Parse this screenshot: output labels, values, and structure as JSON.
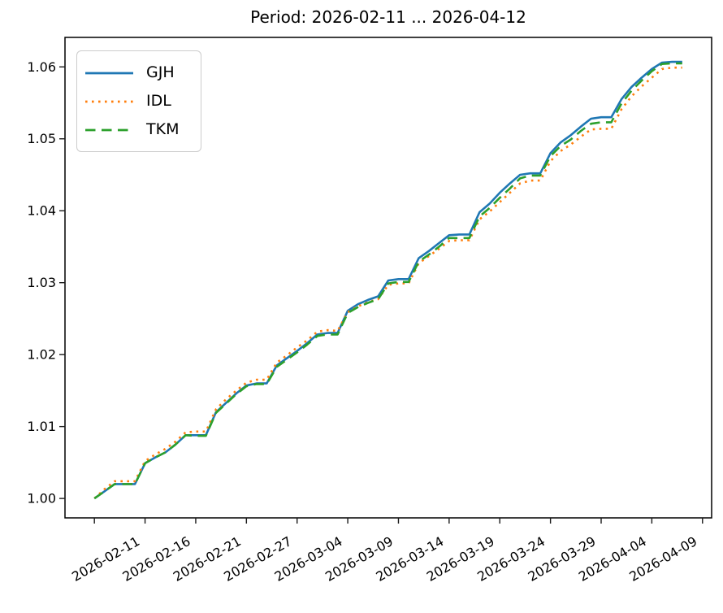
{
  "figure": {
    "background": "#ffffff",
    "spine_color": "#000000",
    "tick_color": "#1a1a1a",
    "text_color": "#000000",
    "legend_border_color": "#cccccc"
  },
  "chart_data": {
    "type": "line",
    "title": "Period: 2026-02-11 ... 2026-04-12",
    "xlabel": "",
    "ylabel": "",
    "grid": false,
    "legend_position": "upper left",
    "xlim_index": [
      -2.9,
      60.9
    ],
    "ylim": [
      0.9973,
      1.0641
    ],
    "y_ticks": [
      1.0,
      1.01,
      1.02,
      1.03,
      1.04,
      1.05,
      1.06
    ],
    "y_tick_labels": [
      "1.00",
      "1.01",
      "1.02",
      "1.03",
      "1.04",
      "1.05",
      "1.06"
    ],
    "x_tick_indices": [
      0,
      5,
      10,
      15,
      20,
      25,
      30,
      35,
      40,
      45,
      50,
      55,
      60
    ],
    "x_tick_labels": [
      "2026-02-11",
      "2026-02-16",
      "2026-02-21",
      "2026-02-27",
      "2026-03-04",
      "2026-03-09",
      "2026-03-14",
      "2026-03-19",
      "2026-03-24",
      "2026-03-29",
      "2026-04-04",
      "2026-04-09",
      ""
    ],
    "x_labels": [
      "2026-02-11",
      "2026-02-12",
      "2026-02-13",
      "2026-02-14",
      "2026-02-15",
      "2026-02-16",
      "2026-02-17",
      "2026-02-18",
      "2026-02-19",
      "2026-02-20",
      "2026-02-21",
      "2026-02-22",
      "2026-02-24",
      "2026-02-25",
      "2026-02-26",
      "2026-02-27",
      "2026-02-28",
      "2026-03-01",
      "2026-03-02",
      "2026-03-03",
      "2026-03-04",
      "2026-03-05",
      "2026-03-06",
      "2026-03-07",
      "2026-03-08",
      "2026-03-09",
      "2026-03-10",
      "2026-03-11",
      "2026-03-12",
      "2026-03-13",
      "2026-03-14",
      "2026-03-15",
      "2026-03-16",
      "2026-03-17",
      "2026-03-18",
      "2026-03-19",
      "2026-03-20",
      "2026-03-21",
      "2026-03-22",
      "2026-03-23",
      "2026-03-24",
      "2026-03-25",
      "2026-03-26",
      "2026-03-27",
      "2026-03-28",
      "2026-03-29",
      "2026-03-30",
      "2026-03-31",
      "2026-04-02",
      "2026-04-03",
      "2026-04-04",
      "2026-04-05",
      "2026-04-06",
      "2026-04-07",
      "2026-04-08",
      "2026-04-09",
      "2026-04-10",
      "2026-04-11",
      "2026-04-12"
    ],
    "series": [
      {
        "name": "GJH",
        "color": "#1f77b4",
        "style": "solid",
        "values": [
          1.0,
          1.001,
          1.002,
          1.002,
          1.002,
          1.0049,
          1.0057,
          1.0064,
          1.0075,
          1.0088,
          1.0088,
          1.0088,
          1.012,
          1.0133,
          1.0146,
          1.0157,
          1.016,
          1.016,
          1.0185,
          1.0195,
          1.0205,
          1.0216,
          1.0228,
          1.023,
          1.023,
          1.0261,
          1.027,
          1.0276,
          1.0281,
          1.0303,
          1.0305,
          1.0305,
          1.0334,
          1.0344,
          1.0355,
          1.0366,
          1.0367,
          1.0367,
          1.0398,
          1.041,
          1.0425,
          1.0438,
          1.045,
          1.0452,
          1.0452,
          1.048,
          1.0495,
          1.0505,
          1.0517,
          1.0528,
          1.053,
          1.053,
          1.0555,
          1.0572,
          1.0585,
          1.0597,
          1.0606,
          1.0607,
          1.0607
        ]
      },
      {
        "name": "IDL",
        "color": "#ff7f0e",
        "style": "dotted",
        "values": [
          1.0,
          1.0013,
          1.0024,
          1.0024,
          1.0024,
          1.0052,
          1.0061,
          1.0069,
          1.0079,
          1.0092,
          1.0093,
          1.0093,
          1.0124,
          1.0138,
          1.015,
          1.0161,
          1.0165,
          1.0165,
          1.0189,
          1.0199,
          1.021,
          1.022,
          1.0232,
          1.0234,
          1.0233,
          1.0259,
          1.0267,
          1.0273,
          1.0277,
          1.0297,
          1.0299,
          1.0299,
          1.0327,
          1.0337,
          1.0347,
          1.0358,
          1.0359,
          1.0359,
          1.0388,
          1.0399,
          1.0412,
          1.0425,
          1.0438,
          1.0442,
          1.0442,
          1.0469,
          1.0483,
          1.0492,
          1.0503,
          1.0513,
          1.0514,
          1.0514,
          1.0541,
          1.0559,
          1.0573,
          1.0585,
          1.0597,
          1.0599,
          1.0599
        ]
      },
      {
        "name": "TKM",
        "color": "#2ca02c",
        "style": "dashed",
        "values": [
          1.0,
          1.001,
          1.002,
          1.002,
          1.002,
          1.0049,
          1.0057,
          1.0064,
          1.0075,
          1.0088,
          1.0087,
          1.0087,
          1.0119,
          1.0132,
          1.0145,
          1.0156,
          1.0159,
          1.0159,
          1.0183,
          1.0193,
          1.0203,
          1.0214,
          1.0226,
          1.0228,
          1.0228,
          1.0258,
          1.0266,
          1.0272,
          1.0277,
          1.0299,
          1.0301,
          1.0301,
          1.0329,
          1.0339,
          1.035,
          1.0362,
          1.0362,
          1.0362,
          1.0392,
          1.0404,
          1.0418,
          1.0431,
          1.0445,
          1.0449,
          1.0449,
          1.0476,
          1.049,
          1.0499,
          1.0511,
          1.0521,
          1.0523,
          1.0523,
          1.0549,
          1.0567,
          1.0581,
          1.0594,
          1.0604,
          1.0605,
          1.0605
        ]
      }
    ]
  }
}
